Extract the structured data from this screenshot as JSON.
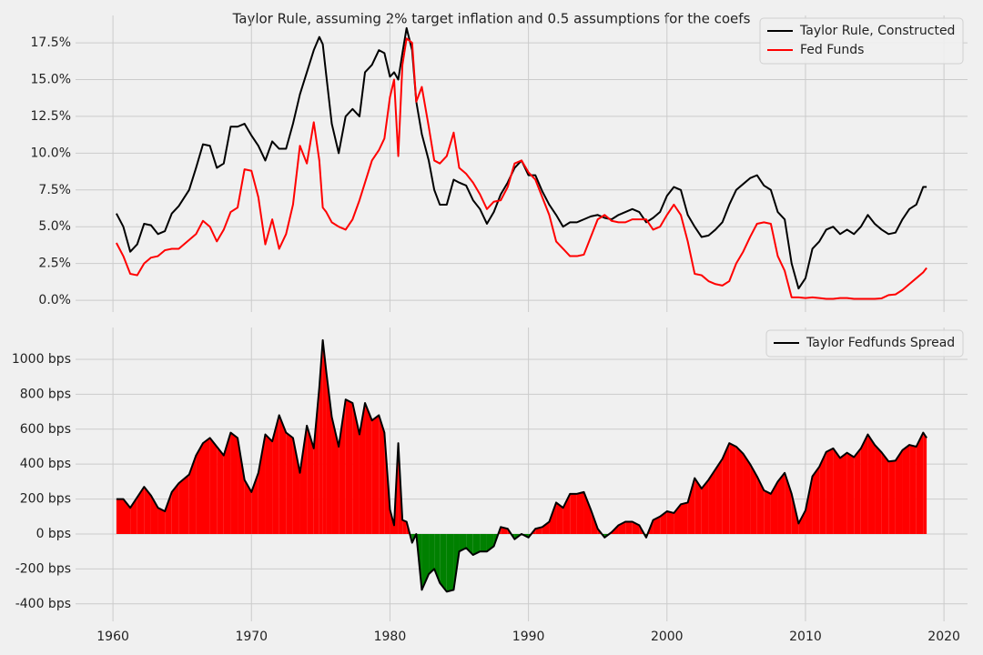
{
  "chart_data": [
    {
      "type": "line",
      "title": "Taylor Rule, assuming 2% target inflation and 0.5 assumptions for the coefs",
      "x": [
        1960.25,
        1960.75,
        1961.25,
        1961.75,
        1962.25,
        1962.75,
        1963.25,
        1963.75,
        1964.25,
        1964.75,
        1965.5,
        1966,
        1966.5,
        1967,
        1967.5,
        1968,
        1968.5,
        1969,
        1969.5,
        1970,
        1970.5,
        1971,
        1971.5,
        1972,
        1972.5,
        1973,
        1973.5,
        1974,
        1974.5,
        1974.9,
        1975.15,
        1975.4,
        1975.8,
        1976.3,
        1976.8,
        1977.3,
        1977.8,
        1978.2,
        1978.7,
        1979.2,
        1979.6,
        1980,
        1980.3,
        1980.6,
        1980.9,
        1981.2,
        1981.6,
        1981.9,
        1982.3,
        1982.8,
        1983.2,
        1983.6,
        1984.1,
        1984.6,
        1985,
        1985.5,
        1986,
        1986.5,
        1987,
        1987.5,
        1988,
        1988.5,
        1989,
        1989.5,
        1990,
        1990.5,
        1991,
        1991.5,
        1992,
        1992.5,
        1993,
        1993.5,
        1994,
        1994.5,
        1995,
        1995.5,
        1996,
        1996.5,
        1997,
        1997.5,
        1998,
        1998.5,
        1999,
        1999.5,
        2000,
        2000.5,
        2001,
        2001.5,
        2002,
        2002.5,
        2003,
        2003.5,
        2004,
        2004.5,
        2005,
        2005.5,
        2006,
        2006.5,
        2007,
        2007.5,
        2008,
        2008.5,
        2009,
        2009.5,
        2010,
        2010.5,
        2011,
        2011.5,
        2012,
        2012.5,
        2013,
        2013.5,
        2014,
        2014.5,
        2015,
        2015.5,
        2016,
        2016.5,
        2017,
        2017.5,
        2018,
        2018.5,
        2018.75
      ],
      "series": [
        {
          "name": "Taylor Rule, Constructed",
          "color": "#000000",
          "values": [
            5.9,
            5.0,
            3.3,
            3.8,
            5.2,
            5.1,
            4.5,
            4.7,
            5.9,
            6.4,
            7.5,
            9.0,
            10.6,
            10.5,
            9.0,
            9.3,
            11.8,
            11.8,
            12.0,
            11.2,
            10.5,
            9.5,
            10.8,
            10.3,
            10.3,
            12.0,
            14.0,
            15.5,
            17.0,
            17.9,
            17.4,
            15.3,
            12.0,
            10.0,
            12.5,
            13.0,
            12.5,
            15.5,
            16.0,
            17.0,
            16.8,
            15.2,
            15.5,
            15.0,
            16.8,
            18.5,
            17.0,
            13.5,
            11.3,
            9.5,
            7.5,
            6.5,
            6.5,
            8.2,
            8.0,
            7.8,
            6.8,
            6.2,
            5.2,
            6.0,
            7.2,
            8.0,
            9.0,
            9.5,
            8.5,
            8.5,
            7.4,
            6.5,
            5.8,
            5.0,
            5.3,
            5.3,
            5.5,
            5.7,
            5.8,
            5.6,
            5.5,
            5.8,
            6.0,
            6.2,
            6.0,
            5.3,
            5.6,
            6.0,
            7.1,
            7.7,
            7.5,
            5.8,
            5.0,
            4.3,
            4.4,
            4.8,
            5.3,
            6.5,
            7.5,
            7.9,
            8.3,
            8.5,
            7.8,
            7.5,
            6.0,
            5.5,
            2.5,
            0.8,
            1.5,
            3.5,
            4.0,
            4.8,
            5.0,
            4.5,
            4.8,
            4.5,
            5.0,
            5.8,
            5.2,
            4.8,
            4.5,
            4.6,
            5.5,
            6.2,
            6.5,
            7.7,
            7.7
          ]
        },
        {
          "name": "Fed Funds",
          "color": "#ff0000",
          "values": [
            3.9,
            3.0,
            1.8,
            1.7,
            2.5,
            2.9,
            3.0,
            3.4,
            3.5,
            3.5,
            4.1,
            4.5,
            5.4,
            5.0,
            4.0,
            4.8,
            6.0,
            6.3,
            8.9,
            8.8,
            7.0,
            3.8,
            5.5,
            3.5,
            4.5,
            6.5,
            10.5,
            9.3,
            12.1,
            9.5,
            6.3,
            6.0,
            5.3,
            5.0,
            4.8,
            5.5,
            6.8,
            8.0,
            9.5,
            10.2,
            11.0,
            13.8,
            15.0,
            9.8,
            16.0,
            17.8,
            17.5,
            13.5,
            14.5,
            11.8,
            9.5,
            9.3,
            9.8,
            11.4,
            9.0,
            8.6,
            8.0,
            7.2,
            6.2,
            6.7,
            6.8,
            7.7,
            9.3,
            9.5,
            8.7,
            8.2,
            7.0,
            5.8,
            4.0,
            3.5,
            3.0,
            3.0,
            3.1,
            4.3,
            5.5,
            5.8,
            5.4,
            5.3,
            5.3,
            5.5,
            5.5,
            5.5,
            4.8,
            5.0,
            5.8,
            6.5,
            5.8,
            4.0,
            1.8,
            1.7,
            1.3,
            1.1,
            1.0,
            1.3,
            2.5,
            3.3,
            4.3,
            5.2,
            5.3,
            5.2,
            3.0,
            2.0,
            0.2,
            0.2,
            0.15,
            0.2,
            0.15,
            0.1,
            0.1,
            0.15,
            0.15,
            0.1,
            0.1,
            0.1,
            0.1,
            0.13,
            0.35,
            0.4,
            0.7,
            1.1,
            1.5,
            1.9,
            2.2
          ]
        }
      ],
      "xlim": [
        1957.3,
        2021.7
      ],
      "xticks": [
        1960,
        1970,
        1980,
        1990,
        2000,
        2010,
        2020
      ],
      "ylim": [
        -0.8,
        19.36
      ],
      "yticks": [
        {
          "value": 0,
          "label": "0.0%"
        },
        {
          "value": 2.5,
          "label": "2.5%"
        },
        {
          "value": 5,
          "label": "5.0%"
        },
        {
          "value": 7.5,
          "label": "7.5%"
        },
        {
          "value": 10,
          "label": "10.0%"
        },
        {
          "value": 12.5,
          "label": "12.5%"
        },
        {
          "value": 15,
          "label": "15.0%"
        },
        {
          "value": 17.5,
          "label": "17.5%"
        }
      ],
      "grid": true,
      "legend": "upper-right"
    },
    {
      "type": "area",
      "x": [
        1960.25,
        1960.75,
        1961.25,
        1961.75,
        1962.25,
        1962.75,
        1963.25,
        1963.75,
        1964.25,
        1964.75,
        1965.5,
        1966,
        1966.5,
        1967,
        1967.5,
        1968,
        1968.5,
        1969,
        1969.5,
        1970,
        1970.5,
        1971,
        1971.5,
        1972,
        1972.5,
        1973,
        1973.5,
        1974,
        1974.5,
        1974.9,
        1975.15,
        1975.4,
        1975.8,
        1976.3,
        1976.8,
        1977.3,
        1977.8,
        1978.2,
        1978.7,
        1979.2,
        1979.6,
        1980,
        1980.3,
        1980.6,
        1980.9,
        1981.2,
        1981.6,
        1981.9,
        1982.3,
        1982.8,
        1983.2,
        1983.6,
        1984.1,
        1984.6,
        1985,
        1985.5,
        1986,
        1986.5,
        1987,
        1987.5,
        1988,
        1988.5,
        1989,
        1989.5,
        1990,
        1990.5,
        1991,
        1991.5,
        1992,
        1992.5,
        1993,
        1993.5,
        1994,
        1994.5,
        1995,
        1995.5,
        1996,
        1996.5,
        1997,
        1997.5,
        1998,
        1998.5,
        1999,
        1999.5,
        2000,
        2000.5,
        2001,
        2001.5,
        2002,
        2002.5,
        2003,
        2003.5,
        2004,
        2004.5,
        2005,
        2005.5,
        2006,
        2006.5,
        2007,
        2007.5,
        2008,
        2008.5,
        2009,
        2009.5,
        2010,
        2010.5,
        2011,
        2011.5,
        2012,
        2012.5,
        2013,
        2013.5,
        2014,
        2014.5,
        2015,
        2015.5,
        2016,
        2016.5,
        2017,
        2017.5,
        2018,
        2018.5,
        2018.75
      ],
      "series": [
        {
          "name": "Taylor Fedfunds Spread",
          "color": "#000000",
          "values": [
            200,
            200,
            150,
            210,
            270,
            220,
            150,
            130,
            240,
            290,
            340,
            450,
            520,
            550,
            500,
            450,
            580,
            550,
            310,
            240,
            350,
            570,
            530,
            680,
            580,
            550,
            350,
            620,
            490,
            840,
            1110,
            930,
            670,
            500,
            770,
            750,
            570,
            750,
            650,
            680,
            580,
            140,
            50,
            520,
            80,
            70,
            -50,
            0,
            -320,
            -230,
            -200,
            -280,
            -330,
            -320,
            -100,
            -80,
            -120,
            -100,
            -100,
            -70,
            40,
            30,
            -30,
            0,
            -20,
            30,
            40,
            70,
            180,
            150,
            230,
            230,
            240,
            140,
            30,
            -20,
            10,
            50,
            70,
            70,
            50,
            -20,
            80,
            100,
            130,
            120,
            170,
            180,
            320,
            260,
            310,
            370,
            430,
            520,
            500,
            460,
            400,
            330,
            250,
            230,
            300,
            350,
            230,
            60,
            135,
            330,
            385,
            470,
            490,
            435,
            465,
            440,
            490,
            570,
            510,
            467,
            415,
            420,
            480,
            510,
            500,
            580,
            550
          ]
        }
      ],
      "positive_color": "#ff0000",
      "negative_color": "#008000",
      "xlim": [
        1957.3,
        2021.7
      ],
      "xticks": [
        1960,
        1970,
        1980,
        1990,
        2000,
        2010,
        2020
      ],
      "ylim": [
        -500,
        1182
      ],
      "yticks": [
        {
          "value": -400,
          "label": "-400 bps"
        },
        {
          "value": -200,
          "label": "-200 bps"
        },
        {
          "value": 0,
          "label": "0 bps"
        },
        {
          "value": 200,
          "label": "200 bps"
        },
        {
          "value": 400,
          "label": "400 bps"
        },
        {
          "value": 600,
          "label": "600 bps"
        },
        {
          "value": 800,
          "label": "800 bps"
        },
        {
          "value": 1000,
          "label": "1000 bps"
        }
      ],
      "grid": true,
      "legend": "upper-right"
    }
  ]
}
